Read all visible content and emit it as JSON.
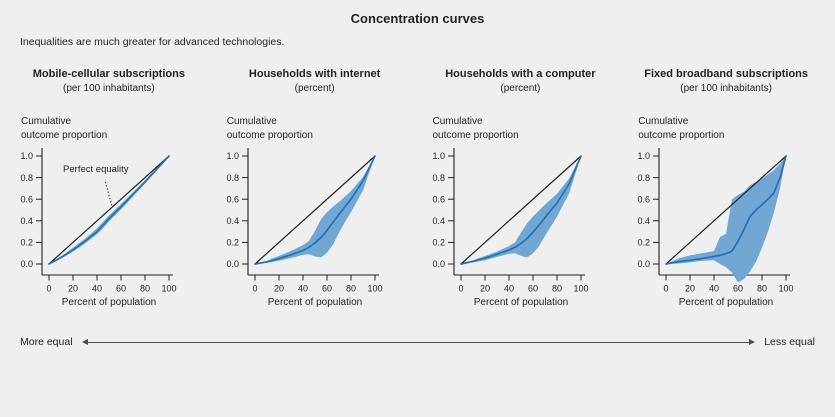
{
  "header": {
    "title": "Concentration curves",
    "subtitle": "Inequalities are much greater for advanced technologies."
  },
  "colors": {
    "background": "#efefef",
    "band": "#72a7d3",
    "line": "#2171b5",
    "diagonal": "#231f20",
    "text": "#231f20",
    "annotation_text": "#2171b5"
  },
  "axes": {
    "y_label_line1": "Cumulative",
    "y_label_line2": "outcome proportion",
    "x_label": "Percent of population",
    "y_ticks": [
      "1.0",
      "0.8",
      "0.6",
      "0.4",
      "0.2",
      "0.0"
    ],
    "x_ticks": [
      "0",
      "20",
      "40",
      "60",
      "80",
      "100"
    ],
    "xlim": [
      0,
      100
    ],
    "ylim": [
      0,
      1
    ],
    "grid": false,
    "legend": "none"
  },
  "footer": {
    "left": "More equal",
    "right": "Less equal"
  },
  "chart_data": [
    {
      "type": "line",
      "title": "Mobile-cellular subscriptions",
      "subtitle": "(per 100 inhabitants)",
      "xlabel": "Percent of population",
      "ylabel": "Cumulative outcome proportion",
      "xlim": [
        0,
        100
      ],
      "ylim": [
        0,
        1
      ],
      "x": [
        0,
        10,
        20,
        30,
        40,
        45,
        50,
        60,
        70,
        80,
        90,
        100
      ],
      "series": [
        {
          "name": "concentration curve",
          "values": [
            0,
            0.06,
            0.13,
            0.21,
            0.3,
            0.36,
            0.42,
            0.53,
            0.645,
            0.76,
            0.88,
            1
          ]
        },
        {
          "name": "lower bound",
          "values": [
            0,
            0.05,
            0.115,
            0.19,
            0.275,
            0.33,
            0.395,
            0.505,
            0.625,
            0.745,
            0.87,
            1
          ]
        },
        {
          "name": "upper bound",
          "values": [
            0,
            0.07,
            0.15,
            0.235,
            0.33,
            0.39,
            0.45,
            0.555,
            0.665,
            0.775,
            0.89,
            1
          ]
        }
      ],
      "diagonal": {
        "from": [
          0,
          0
        ],
        "to": [
          100,
          1
        ],
        "meaning": "perfect equality"
      },
      "annotation": {
        "text": "Perfect equality",
        "x": 39,
        "y": 0.85,
        "leader_from": [
          47,
          0.76
        ],
        "leader_to": [
          52.5,
          0.535
        ]
      }
    },
    {
      "type": "line",
      "title": "Households with internet",
      "subtitle": "(percent)",
      "xlabel": "Percent of population",
      "ylabel": "Cumulative outcome proportion",
      "xlim": [
        0,
        100
      ],
      "ylim": [
        0,
        1
      ],
      "x": [
        0,
        10,
        20,
        30,
        40,
        45,
        50,
        55,
        60,
        65,
        70,
        75,
        80,
        90,
        100
      ],
      "series": [
        {
          "name": "concentration curve",
          "values": [
            0,
            0.02,
            0.05,
            0.085,
            0.125,
            0.155,
            0.195,
            0.245,
            0.31,
            0.385,
            0.46,
            0.53,
            0.6,
            0.77,
            1
          ]
        },
        {
          "name": "lower bound",
          "values": [
            0,
            0.01,
            0.03,
            0.055,
            0.085,
            0.09,
            0.07,
            0.06,
            0.105,
            0.18,
            0.29,
            0.39,
            0.48,
            0.68,
            1
          ]
        },
        {
          "name": "upper bound",
          "values": [
            0,
            0.03,
            0.075,
            0.12,
            0.175,
            0.215,
            0.305,
            0.415,
            0.48,
            0.53,
            0.575,
            0.625,
            0.675,
            0.805,
            1
          ]
        }
      ],
      "diagonal": {
        "from": [
          0,
          0
        ],
        "to": [
          100,
          1
        ],
        "meaning": "perfect equality"
      }
    },
    {
      "type": "line",
      "title": "Households with a computer",
      "subtitle": "(percent)",
      "xlabel": "Percent of population",
      "ylabel": "Cumulative outcome proportion",
      "xlim": [
        0,
        100
      ],
      "ylim": [
        0,
        1
      ],
      "x": [
        0,
        10,
        20,
        30,
        40,
        45,
        50,
        55,
        60,
        65,
        70,
        75,
        80,
        90,
        100
      ],
      "series": [
        {
          "name": "concentration curve",
          "values": [
            0,
            0.025,
            0.055,
            0.09,
            0.13,
            0.155,
            0.19,
            0.235,
            0.295,
            0.36,
            0.43,
            0.5,
            0.565,
            0.74,
            1
          ]
        },
        {
          "name": "lower bound",
          "values": [
            0,
            0.015,
            0.035,
            0.065,
            0.095,
            0.1,
            0.075,
            0.06,
            0.1,
            0.165,
            0.26,
            0.35,
            0.44,
            0.65,
            1
          ]
        },
        {
          "name": "upper bound",
          "values": [
            0,
            0.035,
            0.075,
            0.115,
            0.165,
            0.2,
            0.29,
            0.375,
            0.44,
            0.495,
            0.55,
            0.6,
            0.65,
            0.79,
            1
          ]
        }
      ],
      "diagonal": {
        "from": [
          0,
          0
        ],
        "to": [
          100,
          1
        ],
        "meaning": "perfect equality"
      }
    },
    {
      "type": "line",
      "title": "Fixed broadband subscriptions",
      "subtitle": "(per 100 inhabitants)",
      "xlabel": "Percent of population",
      "ylabel": "Cumulative outcome proportion",
      "xlim": [
        0,
        100
      ],
      "ylim": [
        -0.2,
        1
      ],
      "x": [
        0,
        10,
        20,
        30,
        40,
        45,
        50,
        55,
        60,
        65,
        70,
        75,
        80,
        85,
        90,
        95,
        100
      ],
      "series": [
        {
          "name": "concentration curve",
          "values": [
            0,
            0.02,
            0.035,
            0.05,
            0.07,
            0.08,
            0.095,
            0.12,
            0.21,
            0.32,
            0.44,
            0.5,
            0.55,
            0.6,
            0.66,
            0.8,
            1
          ]
        },
        {
          "name": "lower bound",
          "values": [
            0,
            0.005,
            0.015,
            0.03,
            0.035,
            0.0,
            -0.03,
            -0.08,
            -0.17,
            -0.14,
            -0.07,
            0.02,
            0.15,
            0.3,
            0.48,
            0.7,
            1
          ]
        },
        {
          "name": "upper bound",
          "values": [
            0,
            0.05,
            0.08,
            0.1,
            0.12,
            0.25,
            0.28,
            0.6,
            0.64,
            0.67,
            0.73,
            0.76,
            0.79,
            0.83,
            0.87,
            0.93,
            1
          ]
        }
      ],
      "diagonal": {
        "from": [
          0,
          0
        ],
        "to": [
          100,
          1
        ],
        "meaning": "perfect equality"
      }
    }
  ]
}
